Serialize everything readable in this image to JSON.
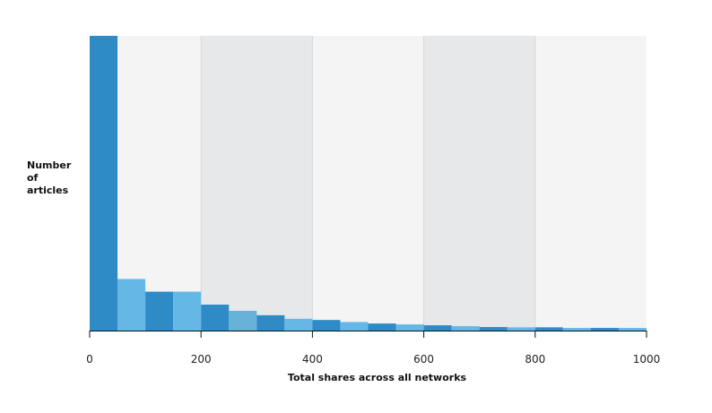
{
  "chart_data": {
    "type": "bar",
    "title": "",
    "xlabel": "Total shares across all networks",
    "ylabel_lines": [
      "Number",
      "of",
      "articles"
    ],
    "xlim": [
      0,
      1000
    ],
    "x_ticks": [
      "0",
      "200",
      "400",
      "600",
      "800",
      "1000"
    ],
    "bin_width": 50,
    "bins": [
      {
        "start": 0,
        "end": 50,
        "value": 100
      },
      {
        "start": 50,
        "end": 100,
        "value": 17.5
      },
      {
        "start": 100,
        "end": 150,
        "value": 13.2
      },
      {
        "start": 150,
        "end": 200,
        "value": 13.2
      },
      {
        "start": 200,
        "end": 250,
        "value": 8.8
      },
      {
        "start": 250,
        "end": 300,
        "value": 6.7
      },
      {
        "start": 300,
        "end": 350,
        "value": 5.2
      },
      {
        "start": 350,
        "end": 400,
        "value": 4.0
      },
      {
        "start": 400,
        "end": 450,
        "value": 3.6
      },
      {
        "start": 450,
        "end": 500,
        "value": 2.9
      },
      {
        "start": 500,
        "end": 550,
        "value": 2.4
      },
      {
        "start": 550,
        "end": 600,
        "value": 2.1
      },
      {
        "start": 600,
        "end": 650,
        "value": 1.8
      },
      {
        "start": 650,
        "end": 700,
        "value": 1.5
      },
      {
        "start": 700,
        "end": 750,
        "value": 1.2
      },
      {
        "start": 750,
        "end": 800,
        "value": 1.1
      },
      {
        "start": 800,
        "end": 850,
        "value": 1.1
      },
      {
        "start": 850,
        "end": 900,
        "value": 0.9
      },
      {
        "start": 900,
        "end": 950,
        "value": 0.9
      },
      {
        "start": 950,
        "end": 1000,
        "value": 0.9
      }
    ],
    "bar_colors": [
      "#2e8bc6",
      "#65b8e6",
      "#2e8bc6",
      "#65b8e6",
      "#2e8bc6",
      "#65b1d8",
      "#2e8bc6",
      "#65b8e6",
      "#2e8bc6",
      "#65b8e6",
      "#2e8bc6",
      "#65b8e6",
      "#2e8bc6",
      "#65b8e6",
      "#2e8bc6",
      "#65b8e6",
      "#2e8bc6",
      "#65b8e6",
      "#2e8bc6",
      "#65b8e6"
    ],
    "background_bands": [
      {
        "start": 0,
        "end": 200,
        "color": "#f4f4f5"
      },
      {
        "start": 200,
        "end": 400,
        "color": "#e7e8ea"
      },
      {
        "start": 400,
        "end": 600,
        "color": "#f4f4f5"
      },
      {
        "start": 600,
        "end": 800,
        "color": "#e7e8ea"
      },
      {
        "start": 800,
        "end": 1000,
        "color": "#f4f4f5"
      }
    ],
    "grid": false,
    "y_ticks_shown": false
  }
}
